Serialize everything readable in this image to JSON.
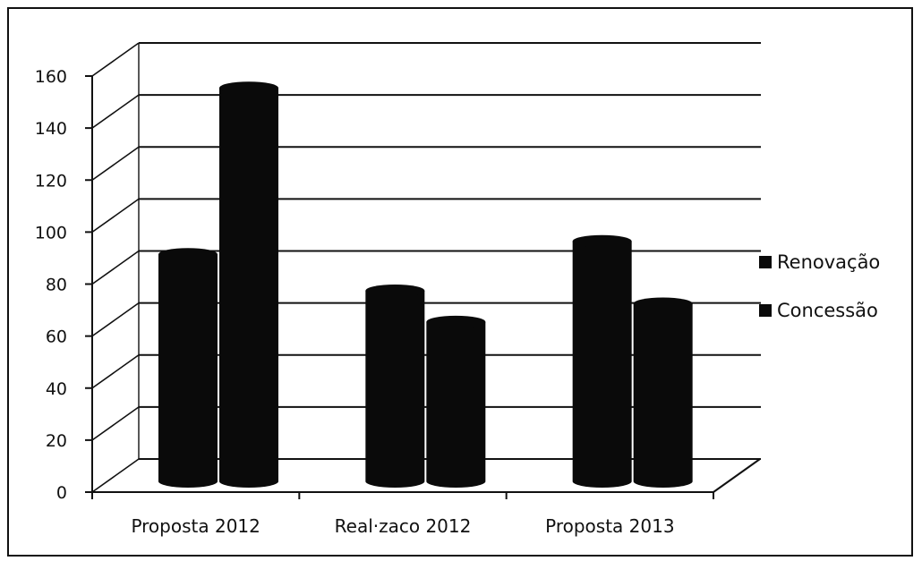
{
  "chart_data": {
    "type": "bar",
    "style": "3d-cylinder",
    "title": "",
    "xlabel": "",
    "ylabel": "",
    "categories": [
      "Proposta 2012",
      "Real·zaco 2012",
      "Proposta 2013"
    ],
    "series": [
      {
        "name": "Renovação",
        "values": [
          88,
          74,
          93
        ]
      },
      {
        "name": "Concessão",
        "values": [
          152,
          62,
          69
        ]
      }
    ],
    "ylim": [
      0,
      160
    ],
    "yticks": [
      0,
      20,
      40,
      60,
      80,
      100,
      120,
      140,
      160
    ],
    "ytick_labels": [
      "0",
      "20",
      "40",
      "60",
      "80",
      "100",
      "120",
      "140",
      "160"
    ],
    "grid": true,
    "legend_position": "right",
    "colors": {
      "bars": "#0a0a0a",
      "grid": "#111111",
      "background": "#ffffff"
    }
  }
}
